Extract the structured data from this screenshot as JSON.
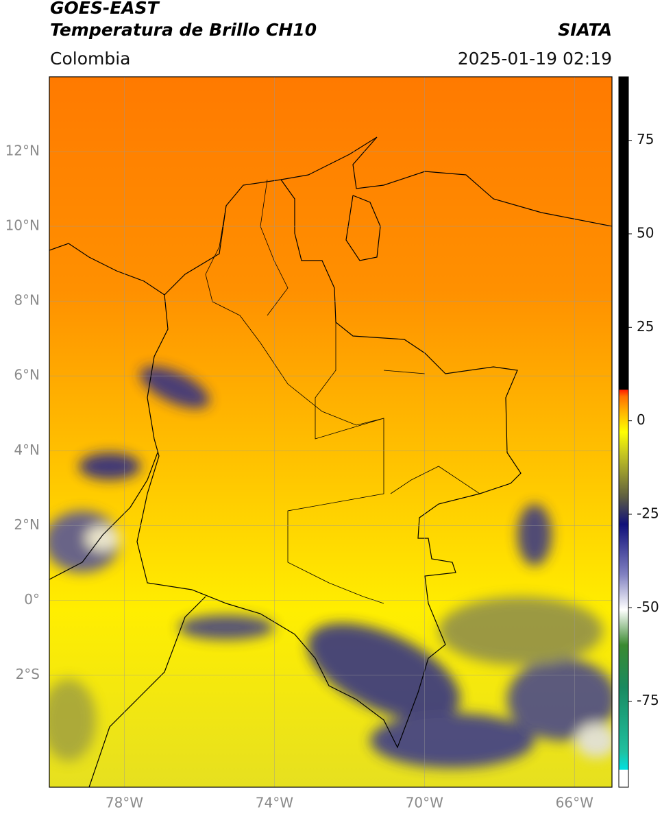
{
  "header": {
    "title_line1": "GOES-EAST",
    "title_line2": "Temperatura de Brillo CH10",
    "region": "Colombia",
    "source": "SIATA",
    "datetime": "2025-01-19 02:19"
  },
  "map": {
    "xlim": [
      -80,
      -65
    ],
    "ylim": [
      -5,
      14
    ],
    "xticks": [
      {
        "value": -78,
        "label": "78°W"
      },
      {
        "value": -74,
        "label": "74°W"
      },
      {
        "value": -70,
        "label": "70°W"
      },
      {
        "value": -66,
        "label": "66°W"
      }
    ],
    "yticks": [
      {
        "value": 12,
        "label": "12°N"
      },
      {
        "value": 10,
        "label": "10°N"
      },
      {
        "value": 8,
        "label": "8°N"
      },
      {
        "value": 6,
        "label": "6°N"
      },
      {
        "value": 4,
        "label": "4°N"
      },
      {
        "value": 2,
        "label": "2°N"
      },
      {
        "value": 0,
        "label": "0°"
      },
      {
        "value": -2,
        "label": "2°S"
      }
    ],
    "grid": true
  },
  "colorbar": {
    "lim": [
      -98,
      92
    ],
    "ticks": [
      75,
      50,
      25,
      0,
      -25,
      -50,
      -75
    ]
  }
}
